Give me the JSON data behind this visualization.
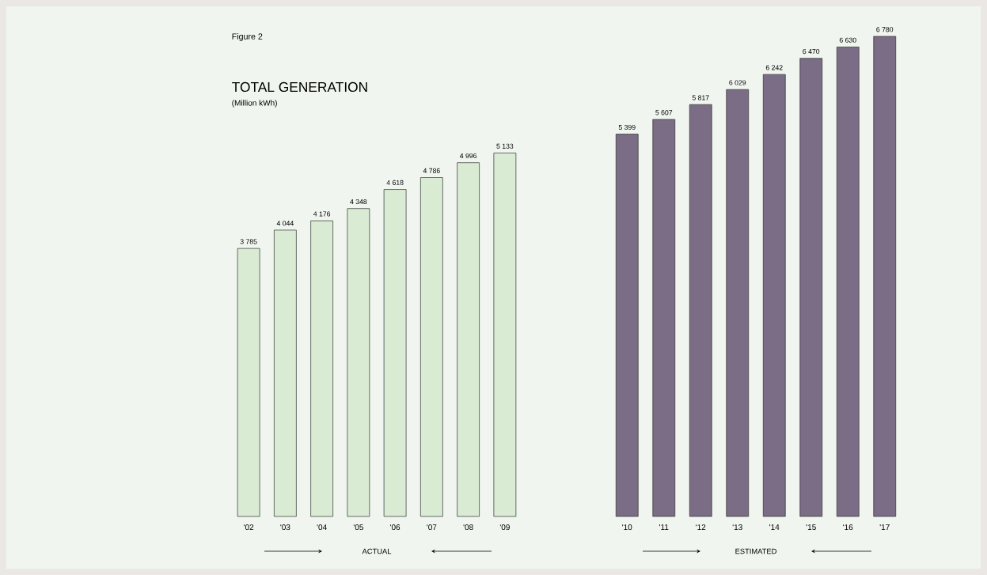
{
  "chart_data": [
    {
      "type": "bar",
      "title": "TOTAL GENERATION",
      "subtitle": "(Million kWh)",
      "annotations": [
        "Figure 2",
        "ACTUAL"
      ],
      "categories": [
        "'02",
        "'03",
        "'04",
        "'05",
        "'06",
        "'07",
        "'08",
        "'09"
      ],
      "values": [
        3785,
        4044,
        4176,
        4348,
        4618,
        4786,
        4996,
        5133
      ],
      "value_labels": [
        "3 785",
        "4 044",
        "4 176",
        "4 348",
        "4 618",
        "4 786",
        "4 996",
        "5 133"
      ],
      "color": "#d9ebd3"
    },
    {
      "type": "bar",
      "annotations": [
        "ESTIMATED"
      ],
      "categories": [
        "'10",
        "'11",
        "'12",
        "'13",
        "'14",
        "'15",
        "'16",
        "'17"
      ],
      "values": [
        5399,
        5607,
        5817,
        6029,
        6242,
        6470,
        6630,
        6780
      ],
      "value_labels": [
        "5 399",
        "5 607",
        "5 817",
        "6 029",
        "6 242",
        "6 470",
        "6 630",
        "6 780"
      ],
      "color": "#7b6d85"
    }
  ]
}
